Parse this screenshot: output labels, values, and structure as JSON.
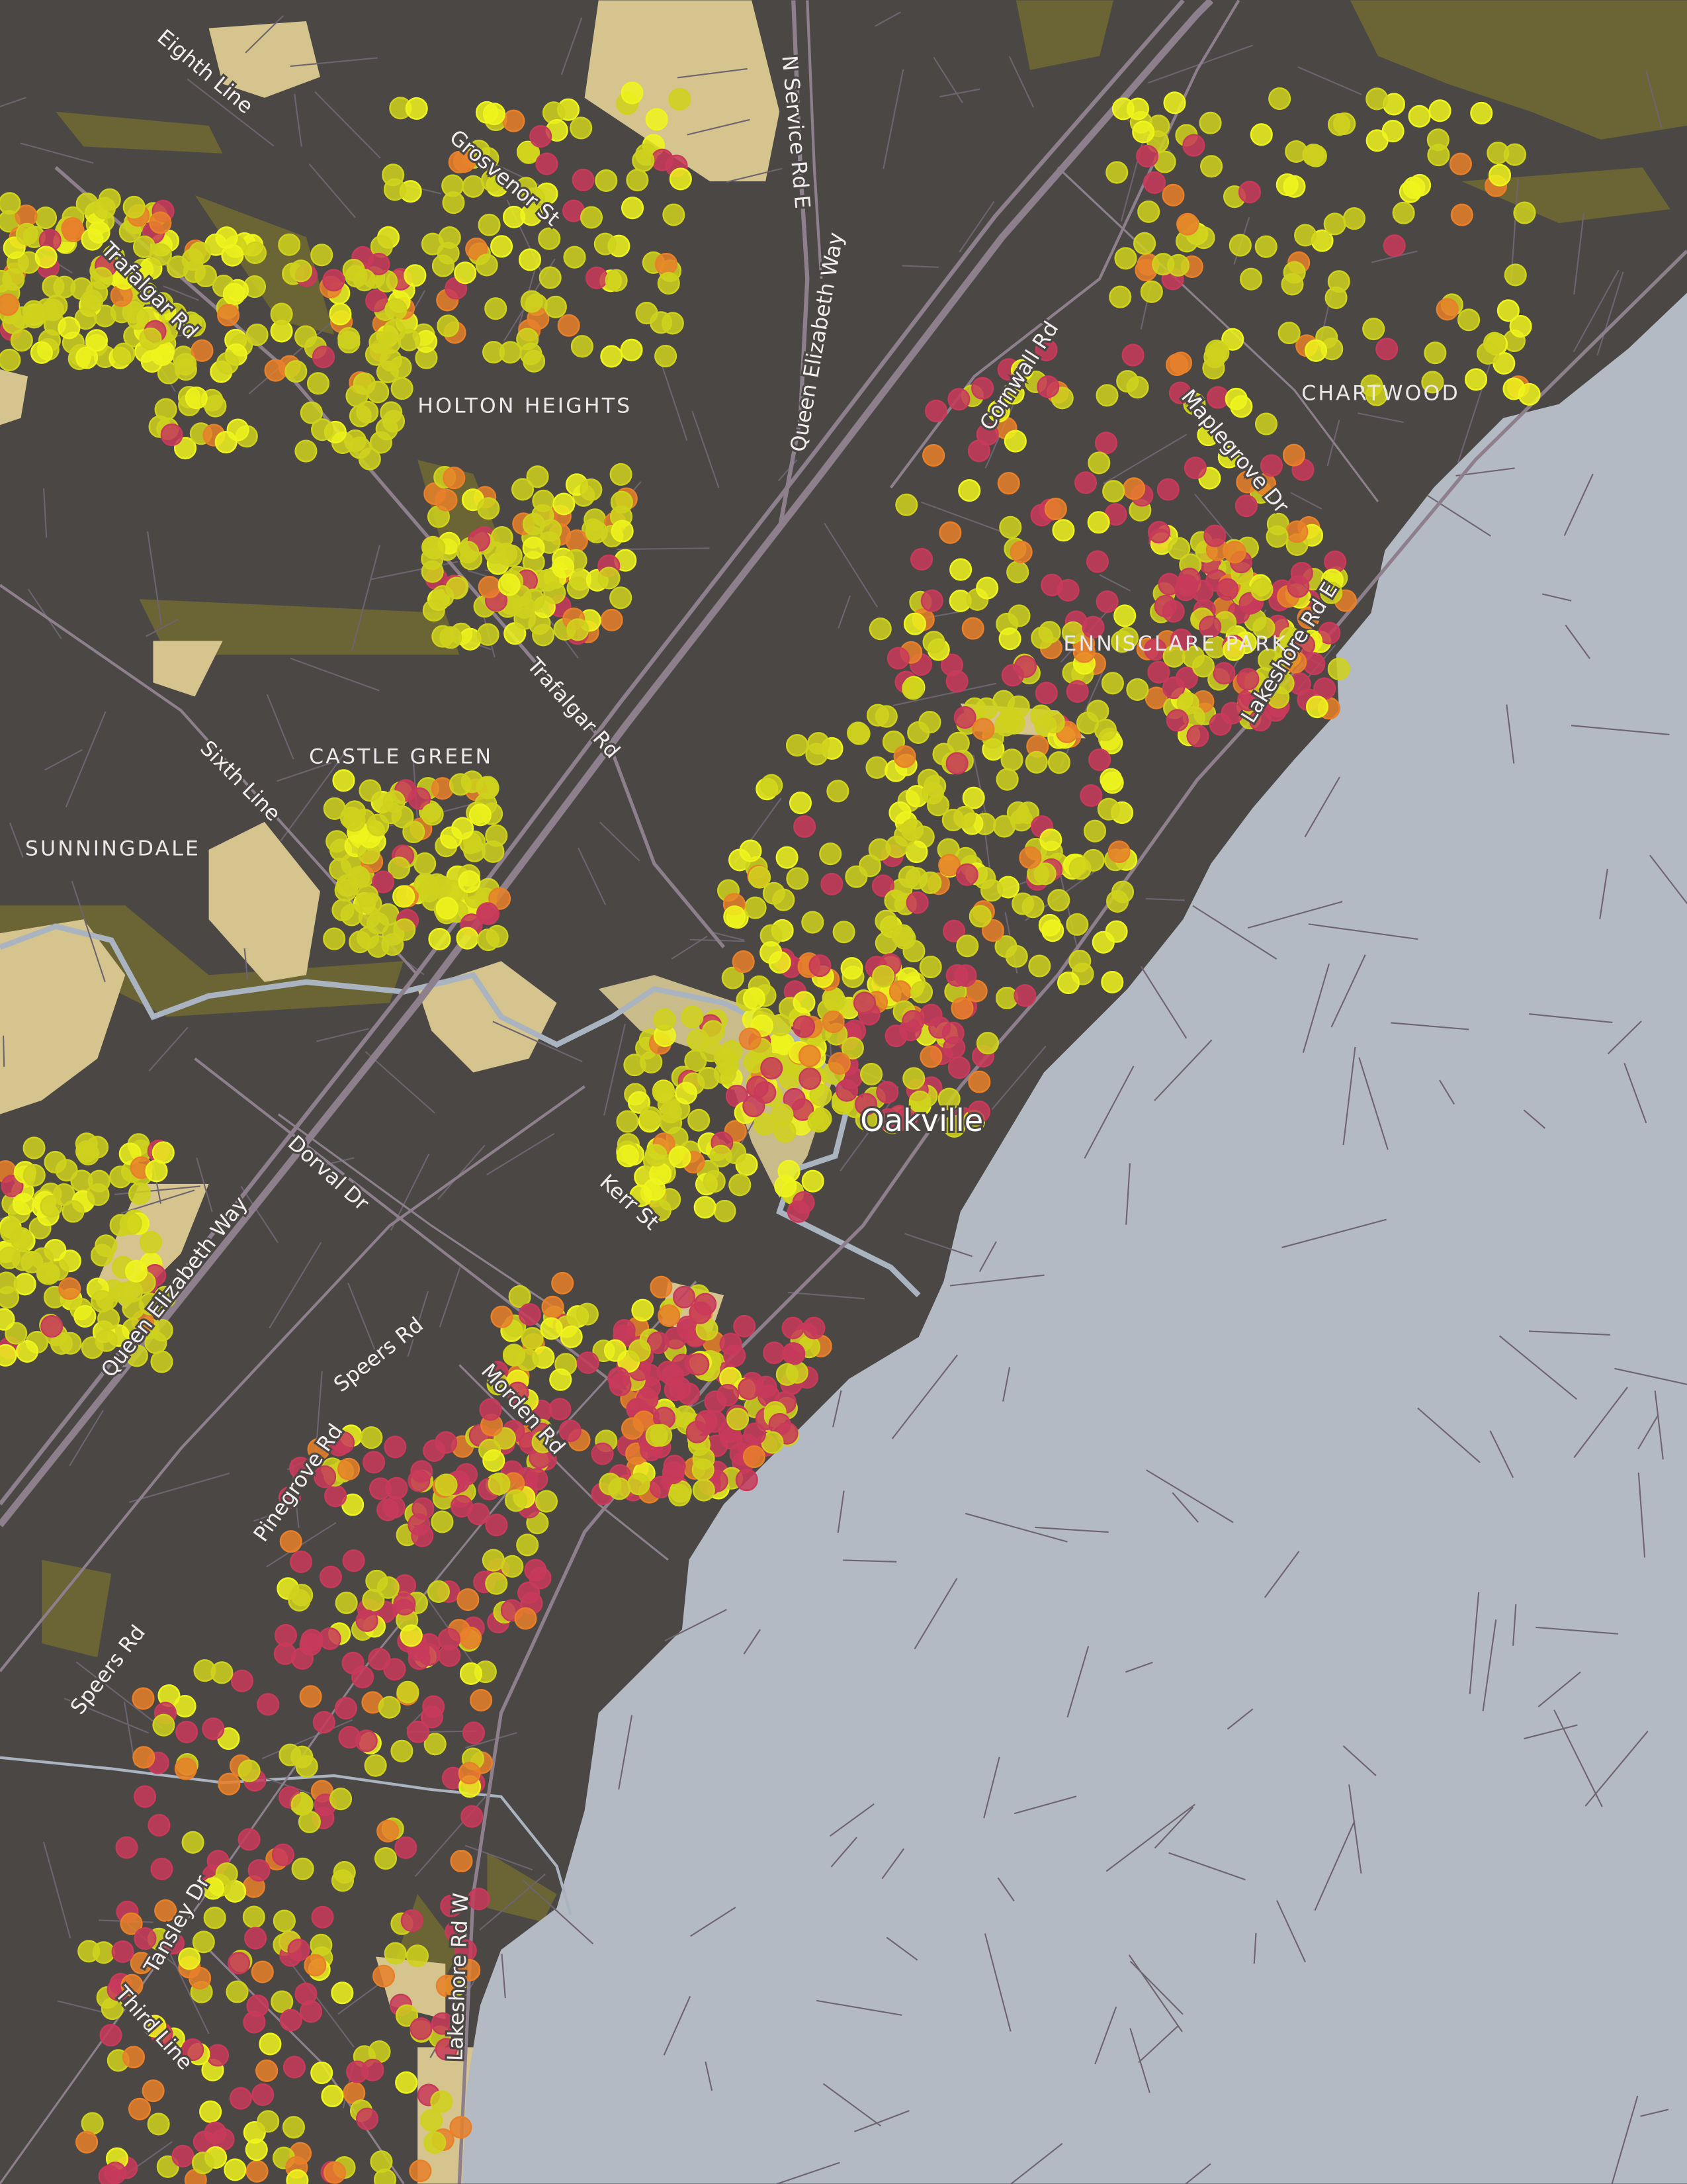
{
  "map": {
    "colors": {
      "land": "#4a4744",
      "water": "#b3bac4",
      "park": "#d6c48e",
      "woodland": "#6b6434",
      "major_road": "#8e7f8c",
      "minor_road": "#7a6f78",
      "creek": "#a9b4c0"
    },
    "city_label": "Oakville",
    "neighbourhoods": [
      "HOLTON HEIGHTS",
      "CASTLE GREEN",
      "SUNNINGDALE",
      "ENNISCLARE PARK",
      "CHARTWOOD"
    ],
    "roads": [
      "Eighth Line",
      "Grosvenor St",
      "N Service Rd E",
      "Queen Elizabeth Way",
      "Trafalgar Rd",
      "Queen Elizabeth Way",
      "Trafalgar Rd",
      "Sixth Line",
      "Cornwall Rd",
      "Maplegrove Dr",
      "Lakeshore Rd E",
      "Dorval Dr",
      "Kerr St",
      "Speers Rd",
      "Morden Rd",
      "Pinegrove Rd",
      "Speers Rd",
      "Tansley Dr",
      "Third Line",
      "Lakeshore Rd W"
    ],
    "point_layer": {
      "colors": {
        "yellow": "#cfd21c",
        "bright_yellow": "#eef41c",
        "orange": "#e8802a",
        "red": "#c83a5a"
      }
    }
  }
}
